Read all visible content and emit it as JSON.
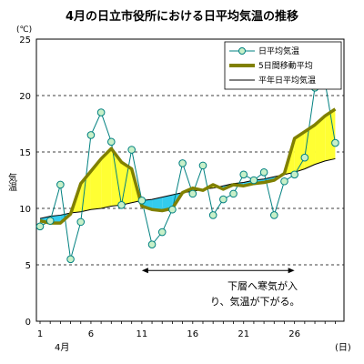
{
  "chart_data": {
    "type": "line",
    "title": "4月の日立市役所における日平均気温の推移",
    "unit_label": "(℃)",
    "ylabel": "気温",
    "x_unit_label": "(日)",
    "x_month_label": "4月",
    "ylim": [
      0,
      25
    ],
    "xlim": [
      1,
      30
    ],
    "y_ticks": [
      0,
      5,
      10,
      15,
      20,
      25
    ],
    "x_ticks": [
      1,
      6,
      11,
      16,
      21,
      26
    ],
    "grid": "horizontal-dashed",
    "legend_position": "top-right",
    "days": [
      1,
      2,
      3,
      4,
      5,
      6,
      7,
      8,
      9,
      10,
      11,
      12,
      13,
      14,
      15,
      16,
      17,
      18,
      19,
      20,
      21,
      22,
      23,
      24,
      25,
      26,
      27,
      28,
      29,
      30
    ],
    "series": [
      {
        "name": "日平均気温",
        "style": "line-with-markers",
        "color": "#008080",
        "values": [
          8.4,
          8.9,
          12.1,
          5.5,
          8.8,
          16.5,
          18.5,
          15.9,
          10.3,
          15.2,
          10.7,
          6.8,
          7.9,
          9.9,
          14.0,
          11.3,
          13.8,
          9.4,
          10.8,
          11.3,
          13.0,
          12.5,
          13.2,
          9.4,
          12.4,
          13.0,
          14.5,
          20.7,
          21.2,
          15.8
        ]
      },
      {
        "name": "5日間移動平均",
        "style": "thick-line",
        "color": "#808000",
        "values": [
          8.9,
          8.7,
          8.7,
          9.5,
          12.2,
          13.3,
          14.4,
          15.3,
          14.1,
          13.5,
          10.2,
          9.9,
          9.8,
          10.0,
          11.4,
          11.8,
          11.6,
          12.1,
          11.7,
          12.1,
          12.0,
          12.2,
          12.3,
          12.5,
          13.1,
          16.2,
          16.8,
          17.4,
          18.2,
          18.8
        ]
      },
      {
        "name": "平年日平均気温",
        "style": "thin-line",
        "color": "#000000",
        "values": [
          9.1,
          9.3,
          9.4,
          9.6,
          9.7,
          9.9,
          10.0,
          10.2,
          10.3,
          10.5,
          10.7,
          10.8,
          11.0,
          11.2,
          11.4,
          11.5,
          11.7,
          11.8,
          12.0,
          12.2,
          12.3,
          12.5,
          12.6,
          12.8,
          13.0,
          13.2,
          13.5,
          13.9,
          14.2,
          14.4
        ]
      }
    ],
    "fill_colors": {
      "above_normal": "#ffff33",
      "below_normal": "#33ccee"
    },
    "annotation": {
      "line1": "下層へ寒気が入",
      "line2": "り、気温が下がる。",
      "range_start": 11,
      "range_end": 26,
      "y_value": 4.5
    }
  }
}
